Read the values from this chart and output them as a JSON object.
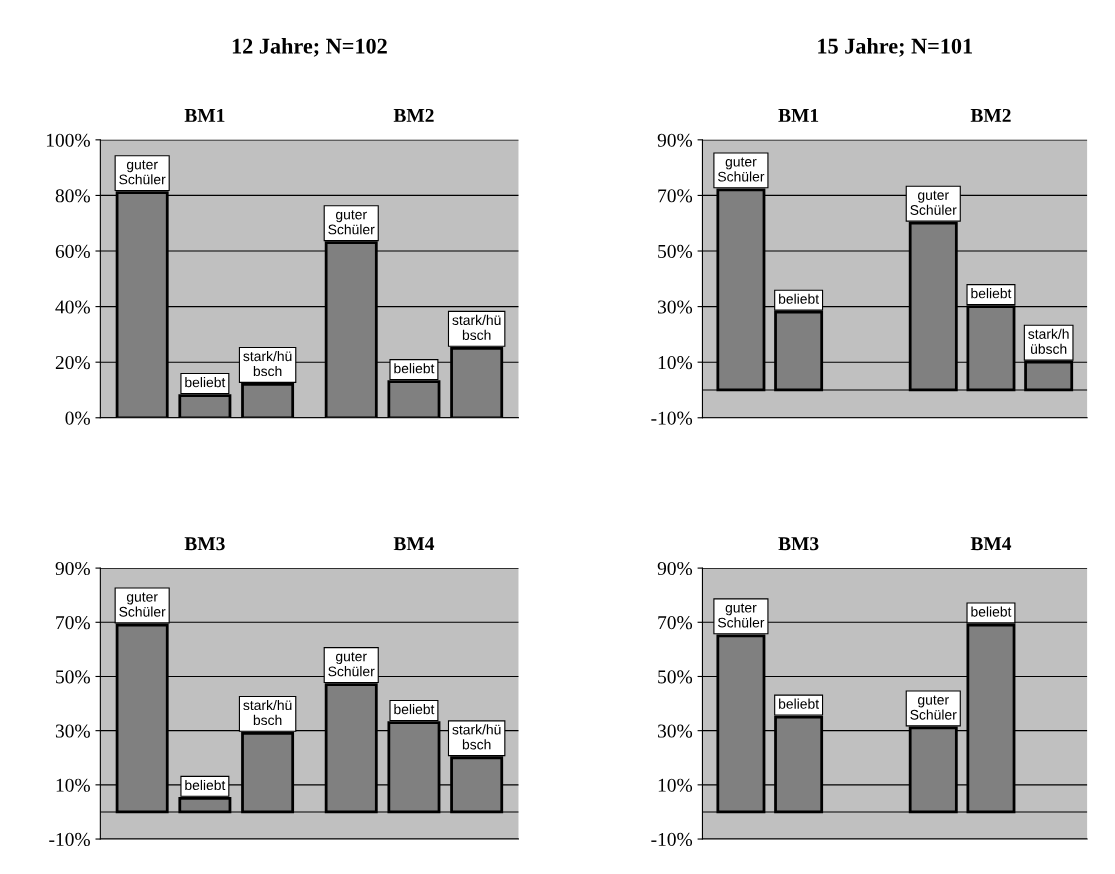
{
  "chart_data": [
    {
      "type": "bar",
      "title": "12 Jahre; N=102",
      "categories": [
        "BM1",
        "BM2"
      ],
      "ylim": [
        0,
        100
      ],
      "yticks": [
        {
          "value": 0,
          "label": "0%"
        },
        {
          "value": 20,
          "label": "20%"
        },
        {
          "value": 40,
          "label": "40%"
        },
        {
          "value": 60,
          "label": "60%"
        },
        {
          "value": 80,
          "label": "80%"
        },
        {
          "value": 100,
          "label": "100%"
        }
      ],
      "grid": "y",
      "series": [
        {
          "name": "guter\nSchüler",
          "color": "#808080",
          "values": [
            81,
            63
          ]
        },
        {
          "name": "beliebt",
          "color": "#808080",
          "values": [
            8,
            13
          ]
        },
        {
          "name": "stark/hü\nbsch",
          "color": "#808080",
          "values": [
            12,
            25
          ]
        }
      ]
    },
    {
      "type": "bar",
      "title": "15 Jahre; N=101",
      "categories": [
        "BM1",
        "BM2"
      ],
      "ylim": [
        -10,
        90
      ],
      "yticks": [
        {
          "value": -10,
          "label": "-10%"
        },
        {
          "value": 10,
          "label": "10%"
        },
        {
          "value": 30,
          "label": "30%"
        },
        {
          "value": 50,
          "label": "50%"
        },
        {
          "value": 70,
          "label": "70%"
        },
        {
          "value": 90,
          "label": "90%"
        }
      ],
      "grid": "y",
      "series": [
        {
          "name": "guter\nSchüler",
          "color": "#808080",
          "values": [
            72,
            60
          ]
        },
        {
          "name": "beliebt",
          "color": "#808080",
          "values": [
            28,
            30
          ]
        },
        {
          "name": "stark/h\nübsch",
          "color": "#808080",
          "values": [
            null,
            10
          ]
        }
      ]
    },
    {
      "type": "bar",
      "categories": [
        "BM3",
        "BM4"
      ],
      "ylim": [
        -10,
        90
      ],
      "yticks": [
        {
          "value": -10,
          "label": "-10%"
        },
        {
          "value": 10,
          "label": "10%"
        },
        {
          "value": 30,
          "label": "30%"
        },
        {
          "value": 50,
          "label": "50%"
        },
        {
          "value": 70,
          "label": "70%"
        },
        {
          "value": 90,
          "label": "90%"
        }
      ],
      "grid": "y",
      "series": [
        {
          "name": "guter\nSchüler",
          "color": "#808080",
          "values": [
            69,
            47
          ]
        },
        {
          "name": "beliebt",
          "color": "#808080",
          "values": [
            5,
            33
          ]
        },
        {
          "name": "stark/hü\nbsch",
          "color": "#808080",
          "values": [
            29,
            20
          ]
        }
      ]
    },
    {
      "type": "bar",
      "categories": [
        "BM3",
        "BM4"
      ],
      "ylim": [
        -10,
        90
      ],
      "yticks": [
        {
          "value": -10,
          "label": "-10%"
        },
        {
          "value": 10,
          "label": "10%"
        },
        {
          "value": 30,
          "label": "30%"
        },
        {
          "value": 50,
          "label": "50%"
        },
        {
          "value": 70,
          "label": "70%"
        },
        {
          "value": 90,
          "label": "90%"
        }
      ],
      "grid": "y",
      "series": [
        {
          "name": "guter\nSchüler",
          "color": "#808080",
          "values": [
            65,
            31
          ]
        },
        {
          "name": "beliebt",
          "color": "#808080",
          "values": [
            35,
            69
          ]
        }
      ]
    }
  ]
}
